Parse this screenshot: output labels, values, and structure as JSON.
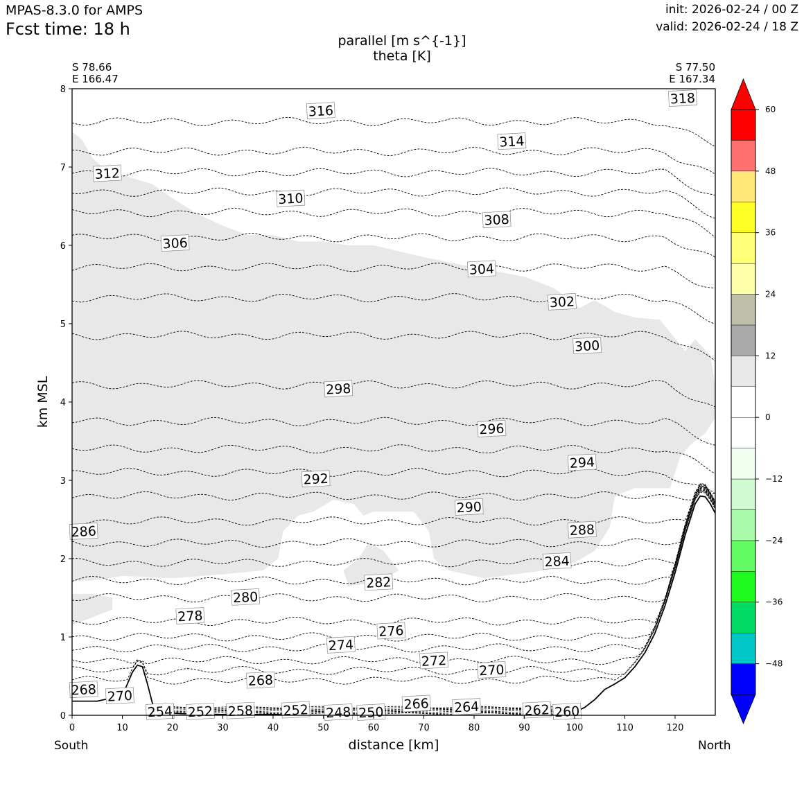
{
  "header": {
    "model": "MPAS-8.3.0 for AMPS",
    "fcst_time": "Fcst time:   18 h",
    "init": "init: 2026-02-24 / 00 Z",
    "valid": "valid: 2026-02-24 / 18 Z"
  },
  "colors": {
    "terrain_line": "#000000",
    "contour_line": "#000000",
    "shade_light_gray": "#e8e8e8"
  },
  "chart_data": {
    "type": "cross-section",
    "title": "parallel [m s^{-1}]",
    "subtitle": "theta [K]",
    "xlabel": "distance [km]",
    "ylabel": "km MSL",
    "xlim": [
      0,
      128
    ],
    "ylim": [
      0,
      8
    ],
    "x_ticks": [
      0,
      10,
      20,
      30,
      40,
      50,
      60,
      70,
      80,
      90,
      100,
      110,
      120
    ],
    "y_ticks": [
      0,
      1,
      2,
      3,
      4,
      5,
      6,
      7,
      8
    ],
    "left_end": {
      "lat": "S 78.66",
      "lon": "E 166.47",
      "label": "South"
    },
    "right_end": {
      "lat": "S 77.50",
      "lon": "E 167.34",
      "label": "North"
    },
    "colorbar": {
      "ticks": [
        60,
        48,
        36,
        24,
        12,
        0,
        -12,
        -24,
        -36,
        -48
      ],
      "tick_labels": [
        "60",
        "48",
        "36",
        "24",
        "12",
        "0",
        "−12",
        "−24",
        "−36",
        "−48"
      ],
      "levels": [
        -54,
        -48,
        -42,
        -36,
        -30,
        -24,
        -18,
        -12,
        -6,
        0,
        6,
        12,
        18,
        24,
        30,
        36,
        42,
        48,
        54,
        60
      ],
      "colors": [
        "#0000ff",
        "#00c8c8",
        "#00dc64",
        "#1efa1e",
        "#64fa64",
        "#aafaaa",
        "#d2fad2",
        "#f0fff0",
        "#ffffff",
        "#ffffff",
        "#e8e8e8",
        "#aaaaaa",
        "#c0c0a8",
        "#ffffaa",
        "#ffff78",
        "#ffff28",
        "#ffe878",
        "#ff7070",
        "#ff0000"
      ],
      "extend_under": "#0000ff",
      "extend_over": "#ff0000"
    },
    "terrain_km": {
      "x": [
        0,
        5,
        10,
        11,
        12,
        13,
        14,
        15,
        16,
        17,
        18,
        22,
        30,
        40,
        50,
        60,
        70,
        80,
        90,
        98,
        100,
        102,
        104,
        106,
        108,
        110,
        112,
        114,
        116,
        118,
        120,
        122,
        124,
        125,
        126,
        127,
        128
      ],
      "y": [
        0.18,
        0.18,
        0.25,
        0.4,
        0.55,
        0.64,
        0.62,
        0.4,
        0.15,
        0.06,
        0.03,
        0.02,
        0.01,
        0.01,
        0.0,
        0.0,
        0.0,
        0.0,
        0.0,
        0.01,
        0.04,
        0.1,
        0.2,
        0.33,
        0.4,
        0.48,
        0.62,
        0.8,
        1.05,
        1.4,
        1.82,
        2.3,
        2.7,
        2.8,
        2.79,
        2.7,
        2.58
      ]
    },
    "theta_contours_K": [
      252,
      254,
      256,
      258,
      260,
      262,
      264,
      266,
      268,
      270,
      272,
      274,
      276,
      278,
      280,
      282,
      284,
      286,
      288,
      290,
      292,
      294,
      296,
      298,
      300,
      302,
      304,
      306,
      308,
      310,
      312,
      314,
      316,
      318
    ],
    "theta_levels_km": [
      {
        "k": 268,
        "y": 0.45
      },
      {
        "k": 270,
        "y": 0.57
      },
      {
        "k": 272,
        "y": 0.7
      },
      {
        "k": 274,
        "y": 0.86
      },
      {
        "k": 276,
        "y": 1.0
      },
      {
        "k": 278,
        "y": 1.2
      },
      {
        "k": 280,
        "y": 1.5
      },
      {
        "k": 282,
        "y": 1.72
      },
      {
        "k": 284,
        "y": 1.95
      },
      {
        "k": 286,
        "y": 2.2
      },
      {
        "k": 288,
        "y": 2.48
      },
      {
        "k": 290,
        "y": 2.8
      },
      {
        "k": 292,
        "y": 3.1
      },
      {
        "k": 294,
        "y": 3.4
      },
      {
        "k": 296,
        "y": 3.75
      },
      {
        "k": 298,
        "y": 4.22
      },
      {
        "k": 300,
        "y": 4.85
      },
      {
        "k": 302,
        "y": 5.33
      },
      {
        "k": 304,
        "y": 5.72
      },
      {
        "k": 306,
        "y": 6.1
      },
      {
        "k": 308,
        "y": 6.42
      },
      {
        "k": 310,
        "y": 6.68
      },
      {
        "k": 312,
        "y": 6.93
      },
      {
        "k": 314,
        "y": 7.2
      },
      {
        "k": 316,
        "y": 7.58
      }
    ],
    "contour_labels": [
      {
        "text": "316",
        "x": 49.5,
        "y": 7.72
      },
      {
        "text": "314",
        "x": 87.5,
        "y": 7.33
      },
      {
        "text": "312",
        "x": 7,
        "y": 6.92
      },
      {
        "text": "310",
        "x": 43.5,
        "y": 6.6
      },
      {
        "text": "308",
        "x": 84.5,
        "y": 6.33
      },
      {
        "text": "306",
        "x": 20.5,
        "y": 6.03
      },
      {
        "text": "304",
        "x": 81.5,
        "y": 5.7
      },
      {
        "text": "302",
        "x": 97.5,
        "y": 5.28
      },
      {
        "text": "300",
        "x": 102.5,
        "y": 4.72
      },
      {
        "text": "298",
        "x": 53,
        "y": 4.17
      },
      {
        "text": "296",
        "x": 83.5,
        "y": 3.66
      },
      {
        "text": "294",
        "x": 101.5,
        "y": 3.23
      },
      {
        "text": "292",
        "x": 48.5,
        "y": 3.02
      },
      {
        "text": "290",
        "x": 79,
        "y": 2.66
      },
      {
        "text": "288",
        "x": 101.5,
        "y": 2.37
      },
      {
        "text": "286",
        "x": 2.3,
        "y": 2.35
      },
      {
        "text": "284",
        "x": 96.5,
        "y": 1.97
      },
      {
        "text": "282",
        "x": 61,
        "y": 1.7
      },
      {
        "text": "280",
        "x": 34.5,
        "y": 1.51
      },
      {
        "text": "278",
        "x": 23.5,
        "y": 1.27
      },
      {
        "text": "276",
        "x": 63.5,
        "y": 1.08
      },
      {
        "text": "274",
        "x": 53.5,
        "y": 0.9
      },
      {
        "text": "272",
        "x": 72,
        "y": 0.7
      },
      {
        "text": "270",
        "x": 83.5,
        "y": 0.58
      },
      {
        "text": "268",
        "x": 37.5,
        "y": 0.45
      },
      {
        "text": "270",
        "x": 9.5,
        "y": 0.25
      },
      {
        "text": "268",
        "x": 2.3,
        "y": 0.33
      },
      {
        "text": "266",
        "x": 68.5,
        "y": 0.15
      },
      {
        "text": "264",
        "x": 78.5,
        "y": 0.11
      },
      {
        "text": "262",
        "x": 92.5,
        "y": 0.07
      },
      {
        "text": "260",
        "x": 98.5,
        "y": 0.05
      },
      {
        "text": "258",
        "x": 33.5,
        "y": 0.06
      },
      {
        "text": "254",
        "x": 17.5,
        "y": 0.05
      },
      {
        "text": "252",
        "x": 25.5,
        "y": 0.05
      },
      {
        "text": "252",
        "x": 44.5,
        "y": 0.07
      },
      {
        "text": "248",
        "x": 53,
        "y": 0.04
      },
      {
        "text": "250",
        "x": 59.5,
        "y": 0.04
      },
      {
        "text": "318",
        "x": 121.5,
        "y": 7.88
      }
    ]
  }
}
